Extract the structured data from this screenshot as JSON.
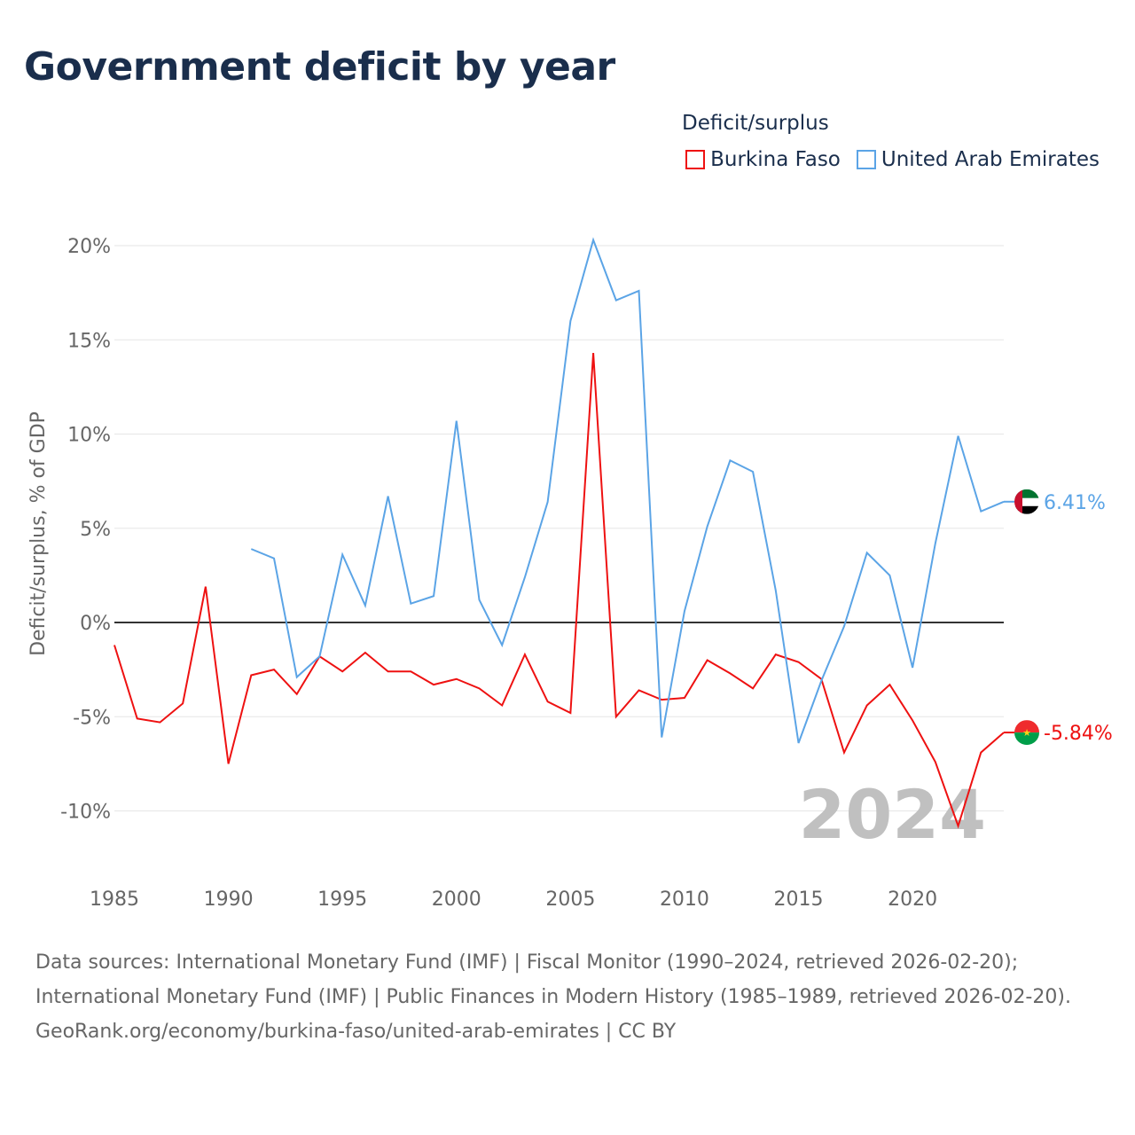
{
  "title": "Government deficit by year",
  "legend": {
    "title": "Deficit/surplus",
    "items": [
      {
        "label": "Burkina Faso",
        "color": "#ee1111"
      },
      {
        "label": "United Arab Emirates",
        "color": "#5ba4e6"
      }
    ]
  },
  "year_overlay": "2024",
  "chart_data": {
    "type": "line",
    "title": "Government deficit by year",
    "xlabel": "",
    "ylabel": "Deficit/surplus, % of GDP",
    "xlim": [
      1985,
      2024
    ],
    "ylim": [
      -12.5,
      22
    ],
    "x_ticks": [
      1985,
      1990,
      1995,
      2000,
      2005,
      2010,
      2015,
      2020
    ],
    "y_ticks": [
      20,
      15,
      10,
      5,
      0,
      -5,
      -10
    ],
    "y_tick_labels": [
      "20%",
      "15%",
      "10%",
      "5%",
      "0%",
      "-5%",
      "-10%"
    ],
    "grid": true,
    "series": [
      {
        "name": "Burkina Faso",
        "color": "#ee1111",
        "end_label": "-5.84%",
        "start_year": 1985,
        "values": [
          -1.2,
          -5.1,
          -5.3,
          -4.3,
          1.9,
          -7.5,
          -2.8,
          -2.5,
          -3.8,
          -1.8,
          -2.6,
          -1.6,
          -2.6,
          -2.6,
          -3.3,
          -3.0,
          -3.5,
          -4.4,
          -1.7,
          -4.2,
          -4.8,
          14.3,
          -5.0,
          -3.6,
          -4.1,
          -4.0,
          -2.0,
          -2.7,
          -3.5,
          -1.7,
          -2.1,
          -3.0,
          -6.9,
          -4.4,
          -3.3,
          -5.2,
          -7.4,
          -10.8,
          -6.9,
          -5.84
        ]
      },
      {
        "name": "United Arab Emirates",
        "color": "#5ba4e6",
        "end_label": "6.41%",
        "start_year": 1991,
        "values": [
          3.9,
          3.4,
          -2.9,
          -1.8,
          3.6,
          0.9,
          6.7,
          1.0,
          1.4,
          10.7,
          1.2,
          -1.2,
          2.4,
          6.4,
          16.0,
          20.3,
          17.1,
          17.6,
          -6.1,
          0.6,
          5.1,
          8.6,
          8.0,
          1.7,
          -6.4,
          -3.1,
          -0.2,
          3.7,
          2.5,
          -2.4,
          4.2,
          9.9,
          5.9,
          6.41
        ]
      }
    ]
  },
  "footer": {
    "sources": "Data sources: International Monetary Fund (IMF) | Fiscal Monitor (1990–2024, retrieved 2026-02-20); International Monetary Fund (IMF) | Public Finances in Modern History (1985–1989, retrieved 2026-02-20).",
    "credit": "GeoRank.org/economy/burkina-faso/united-arab-emirates | CC BY"
  }
}
